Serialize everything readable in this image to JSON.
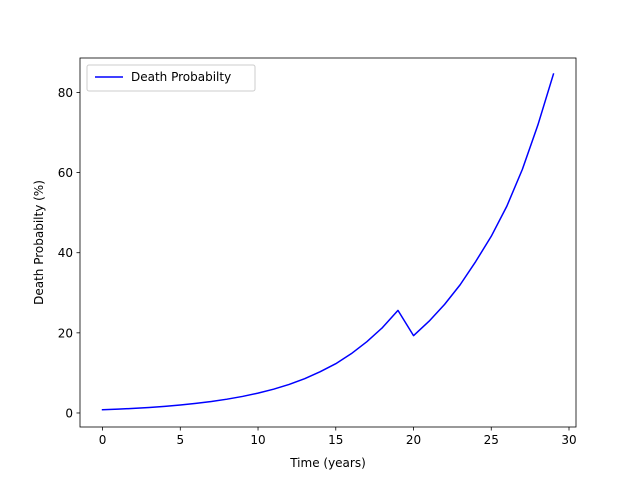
{
  "chart_data": {
    "type": "line",
    "title": "",
    "xlabel": "Time (years)",
    "ylabel": "Death Probabilty (%)",
    "xlim": [
      -1.45,
      30.45
    ],
    "ylim": [
      -3.5,
      88.6
    ],
    "xticks": [
      0,
      5,
      10,
      15,
      20,
      25,
      30
    ],
    "yticks": [
      0,
      20,
      40,
      60,
      80
    ],
    "grid": false,
    "legend_position": "top-left",
    "series": [
      {
        "name": "Death Probabilty",
        "color": "#0000ff",
        "x": [
          0,
          1,
          2,
          3,
          4,
          5,
          6,
          7,
          8,
          9,
          10,
          11,
          12,
          13,
          14,
          15,
          16,
          17,
          18,
          19,
          20,
          21,
          22,
          23,
          24,
          25,
          26,
          27,
          28,
          29
        ],
        "values": [
          0.8,
          0.96,
          1.15,
          1.38,
          1.66,
          1.99,
          2.39,
          2.87,
          3.44,
          4.13,
          4.95,
          5.94,
          7.13,
          8.56,
          10.3,
          12.3,
          14.8,
          17.8,
          21.3,
          25.6,
          19.3,
          22.9,
          27.1,
          32.0,
          37.8,
          44.1,
          51.6,
          60.8,
          71.9,
          84.6
        ]
      }
    ]
  }
}
